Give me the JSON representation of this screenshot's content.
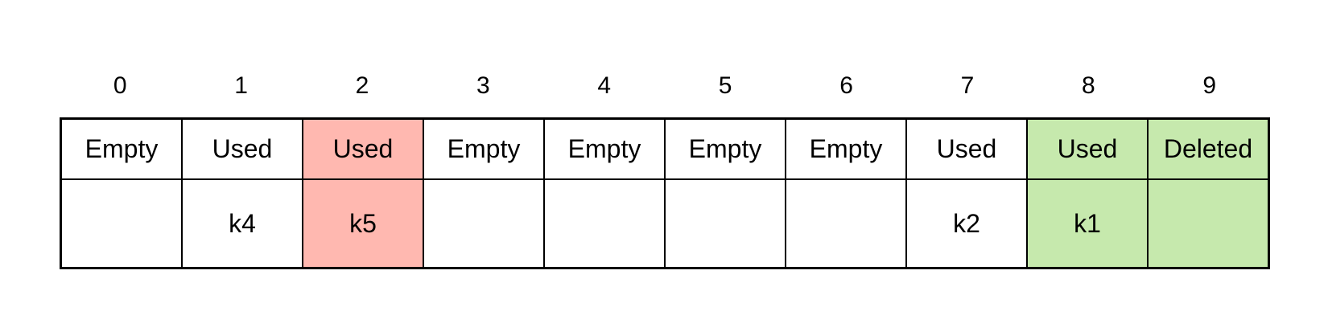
{
  "colors": {
    "highlight_red": "#ffb8b0",
    "highlight_green": "#c6e9ad",
    "border": "#000000"
  },
  "slots": [
    {
      "index": "0",
      "status": "Empty",
      "key": "",
      "highlight": "none"
    },
    {
      "index": "1",
      "status": "Used",
      "key": "k4",
      "highlight": "none"
    },
    {
      "index": "2",
      "status": "Used",
      "key": "k5",
      "highlight": "red"
    },
    {
      "index": "3",
      "status": "Empty",
      "key": "",
      "highlight": "none"
    },
    {
      "index": "4",
      "status": "Empty",
      "key": "",
      "highlight": "none"
    },
    {
      "index": "5",
      "status": "Empty",
      "key": "",
      "highlight": "none"
    },
    {
      "index": "6",
      "status": "Empty",
      "key": "",
      "highlight": "none"
    },
    {
      "index": "7",
      "status": "Used",
      "key": "k2",
      "highlight": "none"
    },
    {
      "index": "8",
      "status": "Used",
      "key": "k1",
      "highlight": "green"
    },
    {
      "index": "9",
      "status": "Deleted",
      "key": "",
      "highlight": "green"
    }
  ]
}
